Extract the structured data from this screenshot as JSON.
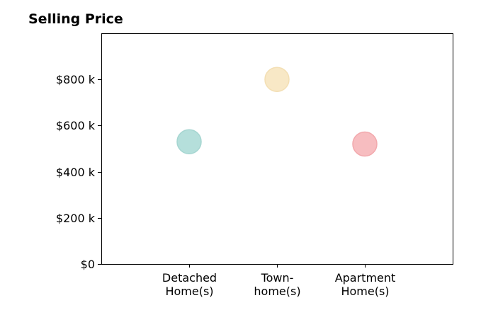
{
  "chart_data": {
    "type": "scatter",
    "title": "Selling Price",
    "xlabel": "",
    "ylabel": "",
    "categories": [
      [
        "Detached",
        "Home(s)"
      ],
      [
        "Town-",
        "home(s)"
      ],
      [
        "Apartment",
        "Home(s)"
      ]
    ],
    "values": [
      530000,
      800000,
      520000
    ],
    "colors": [
      "#b5dfdb",
      "#f8e8c6",
      "#f7bdc0"
    ],
    "edge_colors": [
      "#a6d6d1",
      "#f3dfb4",
      "#f2a9ad"
    ],
    "y_ticks": [
      0,
      200000,
      400000,
      600000,
      800000
    ],
    "y_tick_labels": [
      "$0",
      "$200 k",
      "$400 k",
      "$600 k",
      "$800 k"
    ],
    "ylim": [
      0,
      1000000
    ],
    "x_range": [
      0,
      4
    ],
    "grid": false,
    "legend": "none"
  }
}
